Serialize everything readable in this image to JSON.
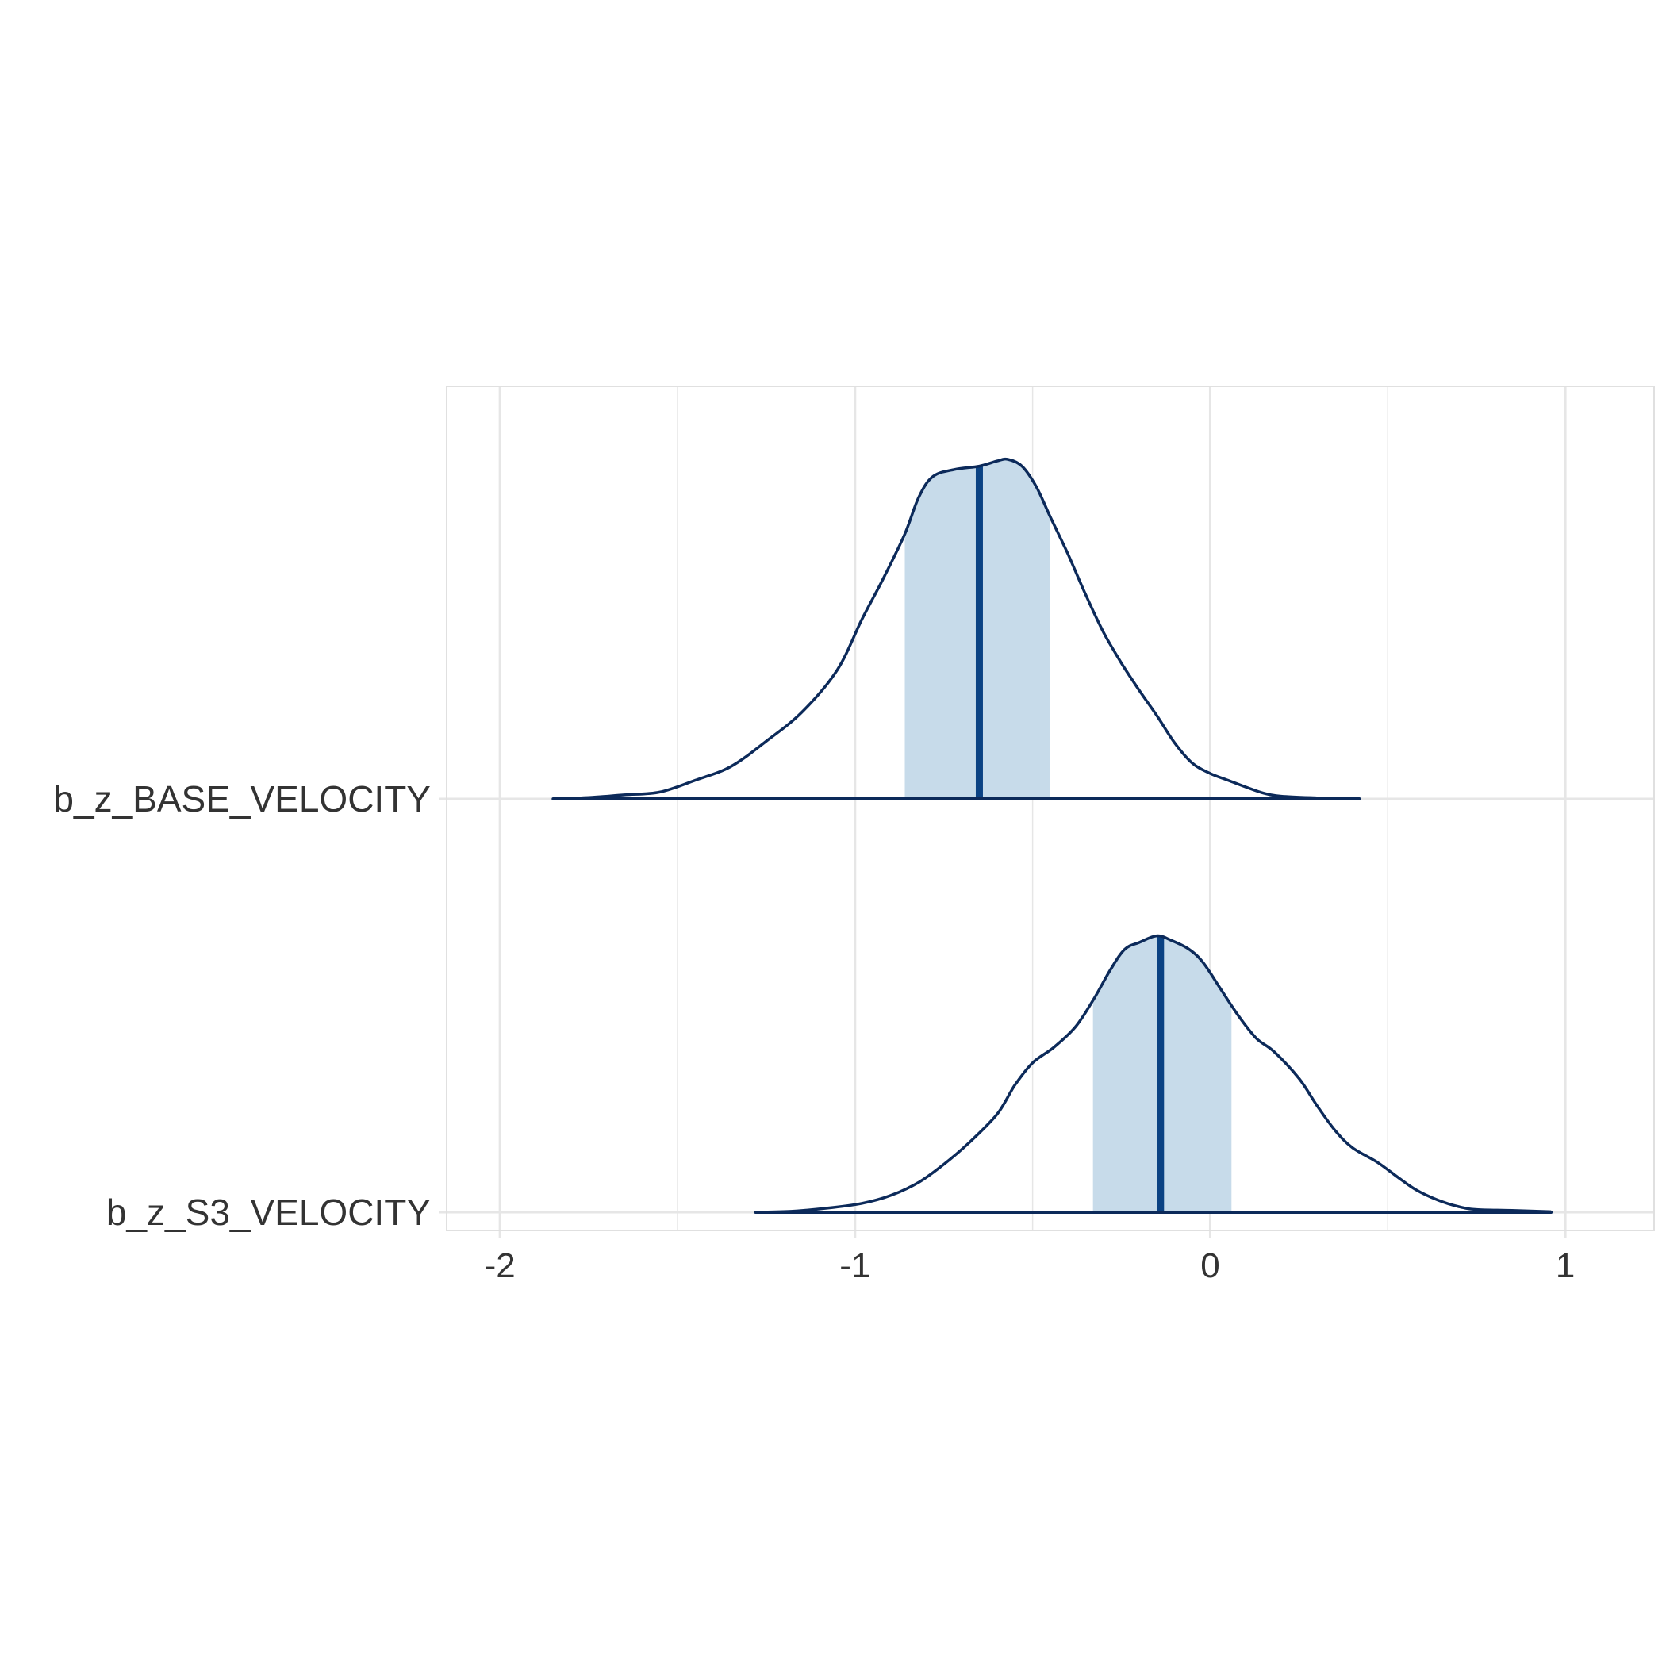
{
  "chart_data": {
    "type": "ridgeline-density",
    "title": "",
    "xlabel": "",
    "ylabel": "",
    "xlim": [
      -2.15,
      1.25
    ],
    "x_ticks": [
      -2,
      -1,
      0,
      1
    ],
    "x_minor_gridlines": [
      -1.5,
      -0.5,
      0.5
    ],
    "grid": true,
    "colors": {
      "density_line": "#0c2a5a",
      "median_line": "#0b4283",
      "interval_fill": "#c7dbea",
      "grid": "#e6e6e6",
      "panel_border": "#e0e0e0"
    },
    "series": [
      {
        "name": "b_z_BASE_VELOCITY",
        "median": -0.65,
        "interval": [
          -0.86,
          -0.45
        ],
        "density": [
          [
            -1.85,
            0.0
          ],
          [
            -1.75,
            0.004
          ],
          [
            -1.65,
            0.012
          ],
          [
            -1.55,
            0.02
          ],
          [
            -1.45,
            0.055
          ],
          [
            -1.35,
            0.095
          ],
          [
            -1.25,
            0.17
          ],
          [
            -1.15,
            0.255
          ],
          [
            -1.05,
            0.38
          ],
          [
            -0.98,
            0.53
          ],
          [
            -0.92,
            0.65
          ],
          [
            -0.86,
            0.78
          ],
          [
            -0.82,
            0.89
          ],
          [
            -0.78,
            0.95
          ],
          [
            -0.72,
            0.97
          ],
          [
            -0.65,
            0.98
          ],
          [
            -0.6,
            0.995
          ],
          [
            -0.57,
            1.0
          ],
          [
            -0.53,
            0.98
          ],
          [
            -0.49,
            0.92
          ],
          [
            -0.45,
            0.83
          ],
          [
            -0.4,
            0.72
          ],
          [
            -0.35,
            0.6
          ],
          [
            -0.3,
            0.49
          ],
          [
            -0.25,
            0.4
          ],
          [
            -0.2,
            0.32
          ],
          [
            -0.15,
            0.245
          ],
          [
            -0.1,
            0.165
          ],
          [
            -0.05,
            0.105
          ],
          [
            0.0,
            0.075
          ],
          [
            0.05,
            0.055
          ],
          [
            0.1,
            0.035
          ],
          [
            0.15,
            0.017
          ],
          [
            0.2,
            0.008
          ],
          [
            0.3,
            0.003
          ],
          [
            0.42,
            0.0
          ]
        ]
      },
      {
        "name": "b_z_S3_VELOCITY",
        "median": -0.14,
        "interval": [
          -0.33,
          0.06
        ],
        "density": [
          [
            -1.28,
            0.0
          ],
          [
            -1.18,
            0.004
          ],
          [
            -1.08,
            0.018
          ],
          [
            -0.98,
            0.04
          ],
          [
            -0.9,
            0.075
          ],
          [
            -0.82,
            0.135
          ],
          [
            -0.75,
            0.215
          ],
          [
            -0.68,
            0.31
          ],
          [
            -0.6,
            0.44
          ],
          [
            -0.55,
            0.57
          ],
          [
            -0.5,
            0.67
          ],
          [
            -0.44,
            0.74
          ],
          [
            -0.38,
            0.83
          ],
          [
            -0.33,
            0.95
          ],
          [
            -0.28,
            1.09
          ],
          [
            -0.24,
            1.18
          ],
          [
            -0.2,
            1.21
          ],
          [
            -0.15,
            1.24
          ],
          [
            -0.11,
            1.22
          ],
          [
            -0.06,
            1.18
          ],
          [
            -0.02,
            1.12
          ],
          [
            0.03,
            1.0
          ],
          [
            0.08,
            0.88
          ],
          [
            0.13,
            0.78
          ],
          [
            0.18,
            0.72
          ],
          [
            0.25,
            0.6
          ],
          [
            0.3,
            0.48
          ],
          [
            0.35,
            0.37
          ],
          [
            0.4,
            0.29
          ],
          [
            0.47,
            0.225
          ],
          [
            0.53,
            0.155
          ],
          [
            0.58,
            0.1
          ],
          [
            0.64,
            0.055
          ],
          [
            0.7,
            0.025
          ],
          [
            0.75,
            0.012
          ],
          [
            0.85,
            0.008
          ],
          [
            0.96,
            0.002
          ]
        ]
      }
    ]
  }
}
